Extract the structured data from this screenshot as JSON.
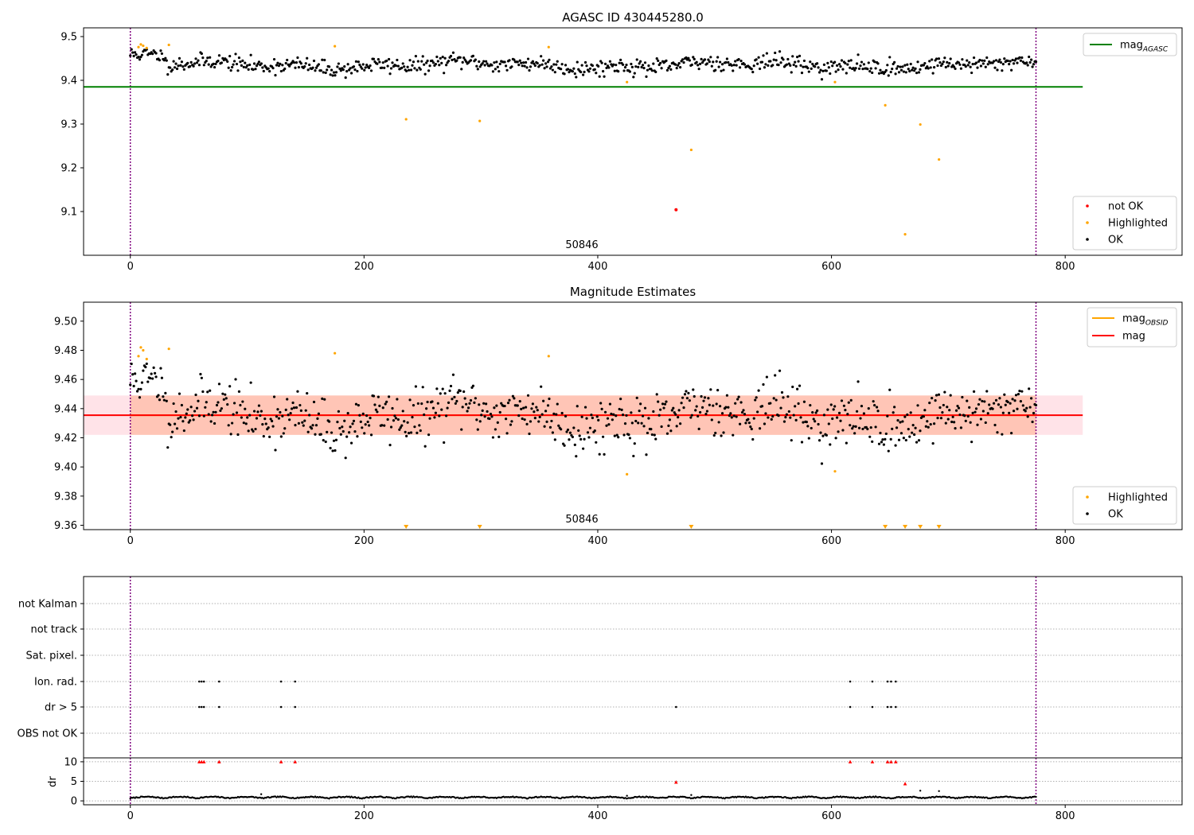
{
  "figure": {
    "background": "#ffffff"
  },
  "colors": {
    "ok": "#000000",
    "highlighted": "#ffa500",
    "not_ok": "#ff0000",
    "agasc_line": "#008000",
    "mag_line": "#ff0000",
    "obsid_line": "#ffa500",
    "band_outer": "#ffc0cb",
    "band_inner": "#ffa07a",
    "vline": "#800080",
    "grid": "#b0b0b0"
  },
  "chart_data": [
    {
      "type": "scatter",
      "title": "AGASC ID 430445280.0",
      "annotation": "50846",
      "xlim": [
        -40,
        900
      ],
      "ylim": [
        9.0,
        9.52
      ],
      "yticks": [
        9.1,
        9.2,
        9.3,
        9.4,
        9.5
      ],
      "ytick_labels": [
        "9.1",
        "9.2",
        "9.3",
        "9.4",
        "9.5"
      ],
      "xticks": [
        0,
        200,
        400,
        600,
        800
      ],
      "xtick_labels": [
        "0",
        "200",
        "400",
        "600",
        "800"
      ],
      "vlines": [
        0,
        775
      ],
      "hline": {
        "y": 9.385,
        "x_range": [
          -40,
          815
        ],
        "color": "#008000",
        "label": "mag",
        "label_sub": "AGASC"
      },
      "legend_lines": [
        {
          "label": "mag",
          "sub": "AGASC",
          "color": "#008000"
        }
      ],
      "legend_markers": [
        {
          "label": "not OK",
          "color": "#ff0000"
        },
        {
          "label": "Highlighted",
          "color": "#ffa500"
        },
        {
          "label": "OK",
          "color": "#000000"
        }
      ],
      "ok_series": {
        "name": "OK",
        "x_range": [
          0,
          775
        ],
        "n": 775,
        "center": 9.435,
        "seed": 11
      },
      "highlighted_points": [
        [
          7,
          9.476
        ],
        [
          9,
          9.482
        ],
        [
          11,
          9.479
        ],
        [
          14,
          9.474
        ],
        [
          33,
          9.481
        ],
        [
          175,
          9.478
        ],
        [
          236,
          9.311
        ],
        [
          299,
          9.307
        ],
        [
          358,
          9.476
        ],
        [
          425,
          9.396
        ],
        [
          480,
          9.241
        ],
        [
          603,
          9.396
        ],
        [
          646,
          9.343
        ],
        [
          663,
          9.048
        ],
        [
          676,
          9.299
        ],
        [
          692,
          9.219
        ]
      ],
      "not_ok_points": [
        [
          467,
          9.104
        ]
      ]
    },
    {
      "type": "scatter",
      "title": "Magnitude Estimates",
      "annotation": "50846",
      "xlim": [
        -40,
        900
      ],
      "ylim": [
        9.357,
        9.513
      ],
      "yticks": [
        9.36,
        9.38,
        9.4,
        9.42,
        9.44,
        9.46,
        9.48,
        9.5
      ],
      "ytick_labels": [
        "9.36",
        "9.38",
        "9.40",
        "9.42",
        "9.44",
        "9.46",
        "9.48",
        "9.50"
      ],
      "xticks": [
        0,
        200,
        400,
        600,
        800
      ],
      "xtick_labels": [
        "0",
        "200",
        "400",
        "600",
        "800"
      ],
      "vlines": [
        0,
        775
      ],
      "mag": {
        "y": 9.4355,
        "x_range": [
          -40,
          815
        ],
        "band": [
          9.422,
          9.449
        ]
      },
      "obsid": {
        "y": 9.4355,
        "x_range": [
          0,
          775
        ],
        "band": [
          9.422,
          9.449
        ]
      },
      "legend_lines": [
        {
          "label": "mag",
          "sub": "OBSID",
          "color": "#ffa500"
        },
        {
          "label": "mag",
          "sub": "",
          "color": "#ff0000"
        }
      ],
      "legend_markers": [
        {
          "label": "Highlighted",
          "color": "#ffa500"
        },
        {
          "label": "OK",
          "color": "#000000"
        }
      ],
      "ok_series": {
        "name": "OK",
        "x_range": [
          0,
          775
        ],
        "n": 775,
        "center": 9.435,
        "seed": 11
      },
      "highlighted_points": [
        [
          7,
          9.476
        ],
        [
          9,
          9.482
        ],
        [
          11,
          9.48
        ],
        [
          14,
          9.474
        ],
        [
          33,
          9.481
        ],
        [
          175,
          9.478
        ],
        [
          358,
          9.476
        ],
        [
          425,
          9.395
        ],
        [
          603,
          9.397
        ]
      ],
      "offscale_triangles_x": [
        236,
        299,
        480,
        646,
        663,
        676,
        692
      ]
    },
    {
      "type": "scatter",
      "title": "",
      "xlim": [
        -40,
        900
      ],
      "xticks": [
        0,
        200,
        400,
        600,
        800
      ],
      "xtick_labels": [
        "0",
        "200",
        "400",
        "600",
        "800"
      ],
      "vlines": [
        0,
        775
      ],
      "flag_rows": [
        "not Kalman",
        "not track",
        "Sat. pixel.",
        "Ion. rad.",
        "dr > 5",
        "OBS not OK"
      ],
      "flag_points": {
        "Ion. rad.": [
          59,
          61,
          63,
          76,
          129,
          141,
          616,
          635,
          648,
          651,
          655
        ],
        "dr > 5": [
          59,
          61,
          63,
          76,
          129,
          141,
          467,
          616,
          635,
          648,
          651,
          655
        ]
      },
      "dr": {
        "ylabel": "dr",
        "yticks": [
          0,
          5,
          10
        ],
        "ytick_labels": [
          "0",
          "5",
          "10"
        ],
        "ylim": [
          -1,
          11
        ],
        "outliers": [
          [
            59,
            10
          ],
          [
            61,
            10
          ],
          [
            63,
            10
          ],
          [
            76,
            10
          ],
          [
            129,
            10
          ],
          [
            141,
            10
          ],
          [
            616,
            10
          ],
          [
            635,
            10
          ],
          [
            648,
            10
          ],
          [
            651,
            10
          ],
          [
            655,
            10
          ],
          [
            467,
            4.8
          ],
          [
            663,
            4.4
          ]
        ],
        "extras": [
          [
            112,
            1.7
          ],
          [
            425,
            1.3
          ],
          [
            480,
            1.5
          ],
          [
            676,
            2.6
          ],
          [
            692,
            2.5
          ]
        ]
      }
    }
  ]
}
